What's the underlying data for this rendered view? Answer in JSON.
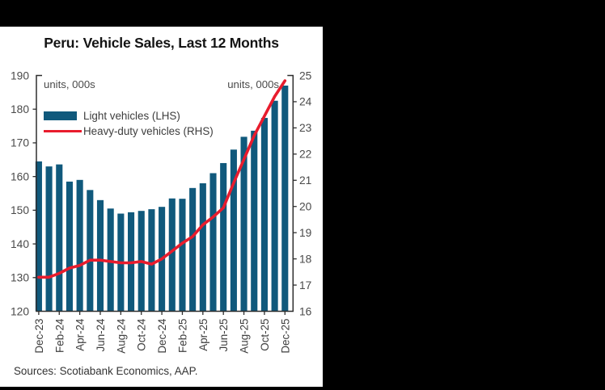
{
  "page": {
    "background_color": "#000000",
    "card_background": "#ffffff"
  },
  "source_note": "Sources: Scotiabank Economics, AAP.",
  "chart_data": {
    "type": "bar",
    "title": "Peru: Vehicle Sales, Last 12 Months",
    "categories": [
      "Dec-23",
      "Jan-24",
      "Feb-24",
      "Mar-24",
      "Apr-24",
      "May-24",
      "Jun-24",
      "Jul-24",
      "Aug-24",
      "Sep-24",
      "Oct-24",
      "Nov-24",
      "Dec-24",
      "Jan-25",
      "Feb-25",
      "Mar-25",
      "Apr-25",
      "May-25",
      "Jun-25",
      "Jul-25",
      "Aug-25",
      "Sep-25",
      "Oct-25",
      "Nov-25",
      "Dec-25"
    ],
    "series": [
      {
        "name": "Light vehicles (LHS)",
        "type": "bar",
        "axis": "left",
        "color": "#10597c",
        "values": [
          164.5,
          163.0,
          163.6,
          158.5,
          159.0,
          156.0,
          153.0,
          150.5,
          149.0,
          149.4,
          149.8,
          150.3,
          151.0,
          153.5,
          153.4,
          156.6,
          158.0,
          161.0,
          164.0,
          168.0,
          171.8,
          173.6,
          177.4,
          182.5,
          187.0
        ]
      },
      {
        "name": "Heavy-duty vehicles (RHS)",
        "type": "line",
        "axis": "right",
        "color": "#e81c2d",
        "values": [
          17.3,
          17.3,
          17.45,
          17.65,
          17.75,
          17.95,
          17.95,
          17.9,
          17.85,
          17.85,
          17.9,
          17.8,
          18.0,
          18.3,
          18.6,
          18.85,
          19.3,
          19.6,
          19.95,
          20.9,
          21.8,
          22.7,
          23.45,
          24.2,
          24.8
        ]
      }
    ],
    "left_axis": {
      "label": "units, 000s",
      "min": 120,
      "max": 190,
      "step": 10,
      "ticks": [
        120,
        130,
        140,
        150,
        160,
        170,
        180,
        190
      ]
    },
    "right_axis": {
      "label": "units, 000s",
      "min": 16,
      "max": 25,
      "step": 1,
      "ticks": [
        16,
        17,
        18,
        19,
        20,
        21,
        22,
        23,
        24,
        25
      ]
    },
    "x_axis": {
      "tick_every": 2,
      "labels_shown": [
        "Dec-23",
        "Feb-24",
        "Apr-24",
        "Jun-24",
        "Aug-24",
        "Oct-24",
        "Dec-24",
        "Feb-25",
        "Apr-25",
        "Jun-25",
        "Aug-25",
        "Oct-25",
        "Dec-25"
      ]
    },
    "grid": false,
    "legend_position": "upper-left-inside"
  }
}
